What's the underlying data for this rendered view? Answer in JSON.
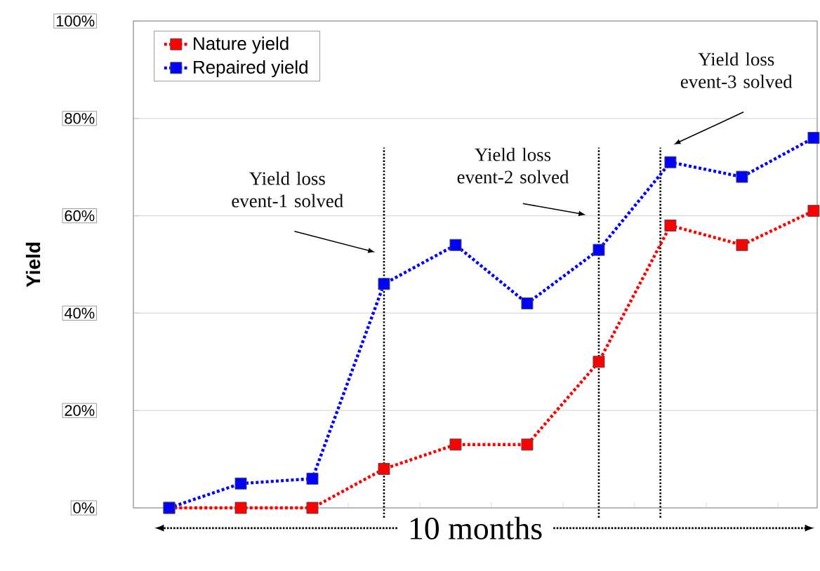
{
  "chart_data": {
    "type": "line",
    "ylabel": "Yield",
    "xlabel": "10 months",
    "categories": [
      null,
      null,
      null,
      null,
      null,
      null,
      null,
      null,
      null,
      null
    ],
    "series": [
      {
        "name": "Nature yield",
        "color": "#ff0000",
        "values": [
          0,
          0,
          0,
          8,
          13,
          13,
          30,
          58,
          54,
          61
        ]
      },
      {
        "name": "Repaired yield",
        "color": "#0000ff",
        "values": [
          0,
          5,
          6,
          46,
          54,
          42,
          53,
          71,
          68,
          76
        ]
      }
    ],
    "ylim": [
      0,
      100
    ],
    "yticks": [
      {
        "value": 0,
        "label": "0%"
      },
      {
        "value": 20,
        "label": "20%"
      },
      {
        "value": 40,
        "label": "40%"
      },
      {
        "value": 60,
        "label": "60%"
      },
      {
        "value": 80,
        "label": "80%"
      },
      {
        "value": 100,
        "label": "100%"
      }
    ],
    "grid": "y",
    "legend": "top left",
    "marker": "square",
    "line_style": "dotted",
    "tick_labels": "y",
    "annotations": [
      "Yield loss event-1 solved",
      "Yield loss event-2 solved",
      "Yield loss event-3 solved"
    ]
  }
}
